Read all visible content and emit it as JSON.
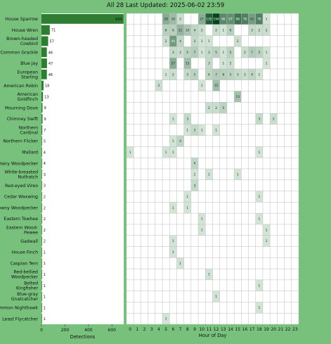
{
  "title": "All 28 Last Updated: 2025-06-02 23:59",
  "chart_data": [
    {
      "type": "bar",
      "orientation": "horizontal",
      "xlabel": "Detections",
      "xlim": [
        0,
        700
      ],
      "xticks": [
        0,
        200,
        400,
        600
      ],
      "categories": [
        "House Sparrow",
        "House Wren",
        "Brown-headed Cowbird",
        "Common Grackle",
        "Blue Jay",
        "European Starling",
        "American Robin",
        "American Goldfinch",
        "Mourning Dove",
        "Chimney Swift",
        "Northern Cardinal",
        "Northern Flicker",
        "Mallard",
        "Hairy Woodpecker",
        "White-breasted Nuthatch",
        "Red-eyed Vireo",
        "Cedar Waxwing",
        "Downy Woodpecker",
        "Eastern Towhee",
        "Eastern Wood-Pewee",
        "Gadwall",
        "House Finch",
        "Caspian Tern",
        "Red-bellied Woodpecker",
        "Belted Kingfisher",
        "Blue-gray Gnatcatcher",
        "Common Nighthawk",
        "Least Flycatcher"
      ],
      "category_lines": [
        [
          "House Sparrow"
        ],
        [
          "House Wren"
        ],
        [
          "Brown-headed",
          "Cowbird"
        ],
        [
          "Common Grackle"
        ],
        [
          "Blue Jay"
        ],
        [
          "European",
          "Starling"
        ],
        [
          "American Robin"
        ],
        [
          "American",
          "Goldfinch"
        ],
        [
          "Mourning Dove"
        ],
        [
          "Chimney Swift"
        ],
        [
          "Northern",
          "Cardinal"
        ],
        [
          "Northern Flicker"
        ],
        [
          "Mallard"
        ],
        [
          "Hairy Woodpecker"
        ],
        [
          "White-breasted",
          "Nuthatch"
        ],
        [
          "Red-eyed Vireo"
        ],
        [
          "Cedar Waxwing"
        ],
        [
          "Downy Woodpecker"
        ],
        [
          "Eastern Towhee"
        ],
        [
          "Eastern Wood-",
          "Pewee"
        ],
        [
          "Gadwall"
        ],
        [
          "House Finch"
        ],
        [
          "Caspian Tern"
        ],
        [
          "Red-bellied",
          "Woodpecker"
        ],
        [
          "Belted",
          "Kingfisher"
        ],
        [
          "Blue-gray",
          "Gnatcatcher"
        ],
        [
          "Common Nighthawk"
        ],
        [
          "Least Flycatcher"
        ]
      ],
      "values": [
        699,
        71,
        57,
        46,
        47,
        46,
        18,
        13,
        9,
        9,
        7,
        5,
        4,
        4,
        3,
        3,
        2,
        2,
        2,
        2,
        2,
        1,
        1,
        1,
        1,
        1,
        1,
        1
      ],
      "value_labels": [
        "699",
        "71",
        "57",
        "46",
        "47",
        "46",
        "18",
        "13",
        "9",
        "9",
        "7",
        "5",
        "4",
        "4",
        "3",
        "3",
        "2",
        "2",
        "2",
        "2",
        "2",
        "1",
        "1",
        "1",
        "1",
        "1",
        "1",
        "1"
      ]
    },
    {
      "type": "heatmap",
      "xlabel": "Hour of Day",
      "x": [
        "0",
        "1",
        "2",
        "3",
        "4",
        "5",
        "6",
        "7",
        "8",
        "9",
        "10",
        "11",
        "12",
        "13",
        "14",
        "15",
        "16",
        "17",
        "18",
        "19",
        "20",
        "21",
        "22",
        "23"
      ],
      "highlight_hour": "23",
      "rows": [
        [
          0,
          0,
          0,
          0,
          0,
          28,
          16,
          2,
          0,
          0,
          27,
          135,
          194,
          66,
          57,
          96,
          78,
          41,
          76,
          1,
          0,
          0,
          0,
          0
        ],
        [
          0,
          0,
          0,
          0,
          0,
          6,
          6,
          21,
          10,
          4,
          2,
          0,
          2,
          1,
          6,
          0,
          0,
          3,
          2,
          2,
          0,
          0,
          0,
          0
        ],
        [
          0,
          0,
          0,
          0,
          0,
          2,
          44,
          4,
          0,
          3,
          1,
          1,
          0,
          0,
          0,
          2,
          0,
          0,
          0,
          0,
          0,
          0,
          0,
          0
        ],
        [
          0,
          0,
          0,
          0,
          0,
          0,
          3,
          2,
          5,
          7,
          1,
          3,
          5,
          1,
          5,
          0,
          2,
          7,
          5,
          1,
          0,
          0,
          0,
          0
        ],
        [
          0,
          0,
          0,
          0,
          0,
          0,
          27,
          0,
          15,
          0,
          0,
          3,
          0,
          1,
          2,
          0,
          0,
          0,
          0,
          1,
          0,
          0,
          0,
          0
        ],
        [
          0,
          0,
          0,
          0,
          0,
          1,
          2,
          0,
          3,
          5,
          0,
          4,
          7,
          6,
          5,
          3,
          2,
          4,
          1,
          0,
          0,
          0,
          0,
          0
        ],
        [
          0,
          0,
          0,
          0,
          2,
          0,
          0,
          0,
          0,
          0,
          1,
          0,
          15,
          0,
          0,
          0,
          0,
          0,
          0,
          0,
          0,
          0,
          0,
          0
        ],
        [
          0,
          0,
          0,
          0,
          0,
          0,
          0,
          0,
          0,
          0,
          0,
          0,
          0,
          0,
          0,
          13,
          0,
          0,
          0,
          0,
          0,
          0,
          0,
          0
        ],
        [
          0,
          0,
          0,
          0,
          0,
          0,
          0,
          0,
          0,
          0,
          0,
          2,
          2,
          5,
          0,
          0,
          0,
          0,
          0,
          0,
          0,
          0,
          0,
          0
        ],
        [
          0,
          0,
          0,
          0,
          0,
          0,
          1,
          0,
          3,
          0,
          0,
          0,
          0,
          0,
          0,
          0,
          0,
          0,
          3,
          0,
          2,
          0,
          0,
          0
        ],
        [
          0,
          0,
          0,
          0,
          0,
          0,
          0,
          0,
          1,
          3,
          1,
          0,
          1,
          0,
          0,
          0,
          0,
          0,
          0,
          0,
          0,
          0,
          0,
          0
        ],
        [
          0,
          0,
          0,
          0,
          0,
          0,
          1,
          4,
          0,
          0,
          0,
          0,
          0,
          0,
          0,
          0,
          0,
          0,
          0,
          0,
          0,
          0,
          0,
          0
        ],
        [
          1,
          0,
          0,
          0,
          0,
          1,
          1,
          0,
          0,
          0,
          0,
          0,
          0,
          0,
          0,
          0,
          0,
          0,
          1,
          0,
          0,
          0,
          0,
          0
        ],
        [
          0,
          0,
          0,
          0,
          0,
          0,
          0,
          0,
          0,
          4,
          0,
          0,
          0,
          0,
          0,
          0,
          0,
          0,
          0,
          0,
          0,
          0,
          0,
          0
        ],
        [
          0,
          0,
          0,
          0,
          0,
          0,
          0,
          0,
          0,
          1,
          0,
          1,
          0,
          0,
          0,
          1,
          0,
          0,
          0,
          0,
          0,
          0,
          0,
          0
        ],
        [
          0,
          0,
          0,
          0,
          0,
          0,
          0,
          0,
          0,
          3,
          0,
          0,
          0,
          0,
          0,
          0,
          0,
          0,
          0,
          0,
          0,
          0,
          0,
          0
        ],
        [
          0,
          0,
          0,
          0,
          0,
          0,
          0,
          0,
          1,
          0,
          0,
          0,
          0,
          0,
          0,
          0,
          0,
          0,
          1,
          0,
          0,
          0,
          0,
          0
        ],
        [
          0,
          0,
          0,
          0,
          0,
          0,
          1,
          0,
          1,
          0,
          0,
          0,
          0,
          0,
          0,
          0,
          0,
          0,
          0,
          0,
          0,
          0,
          0,
          0
        ],
        [
          0,
          0,
          0,
          0,
          0,
          0,
          0,
          0,
          0,
          0,
          1,
          0,
          0,
          0,
          0,
          0,
          0,
          0,
          1,
          0,
          0,
          0,
          0,
          0
        ],
        [
          0,
          0,
          0,
          0,
          0,
          0,
          0,
          0,
          0,
          0,
          1,
          0,
          0,
          0,
          0,
          0,
          0,
          0,
          0,
          1,
          0,
          0,
          0,
          0
        ],
        [
          0,
          0,
          0,
          0,
          0,
          0,
          1,
          0,
          0,
          0,
          0,
          0,
          0,
          0,
          0,
          0,
          0,
          0,
          0,
          1,
          0,
          0,
          0,
          0
        ],
        [
          0,
          0,
          0,
          0,
          0,
          0,
          1,
          0,
          0,
          0,
          0,
          0,
          0,
          0,
          0,
          0,
          0,
          0,
          0,
          0,
          0,
          0,
          0,
          0
        ],
        [
          0,
          0,
          0,
          0,
          0,
          0,
          0,
          1,
          0,
          0,
          0,
          0,
          0,
          0,
          0,
          0,
          0,
          0,
          0,
          0,
          0,
          0,
          0,
          0
        ],
        [
          0,
          0,
          0,
          0,
          0,
          0,
          0,
          0,
          0,
          0,
          0,
          1,
          0,
          0,
          0,
          0,
          0,
          0,
          0,
          0,
          0,
          0,
          0,
          0
        ],
        [
          0,
          0,
          0,
          0,
          0,
          0,
          0,
          0,
          0,
          0,
          0,
          0,
          0,
          0,
          0,
          0,
          0,
          0,
          1,
          0,
          0,
          0,
          0,
          0
        ],
        [
          0,
          0,
          0,
          0,
          0,
          0,
          0,
          0,
          0,
          0,
          0,
          0,
          1,
          0,
          0,
          0,
          0,
          0,
          0,
          0,
          0,
          0,
          0,
          0
        ],
        [
          0,
          0,
          0,
          0,
          0,
          0,
          0,
          0,
          0,
          0,
          0,
          0,
          0,
          0,
          0,
          0,
          0,
          0,
          1,
          0,
          0,
          0,
          0,
          0
        ],
        [
          0,
          0,
          0,
          0,
          0,
          1,
          0,
          0,
          0,
          0,
          0,
          0,
          0,
          0,
          0,
          0,
          0,
          0,
          0,
          0,
          0,
          0,
          0,
          0
        ]
      ]
    }
  ],
  "colors": {
    "background": "#77c17d",
    "panel": "#ffffff",
    "bar": "#2e7d32",
    "grid": "#bdbdbd",
    "heat_low": "#e8f5e9",
    "heat_high": "#00441b",
    "highlight_hour": "#ffeb3b"
  }
}
